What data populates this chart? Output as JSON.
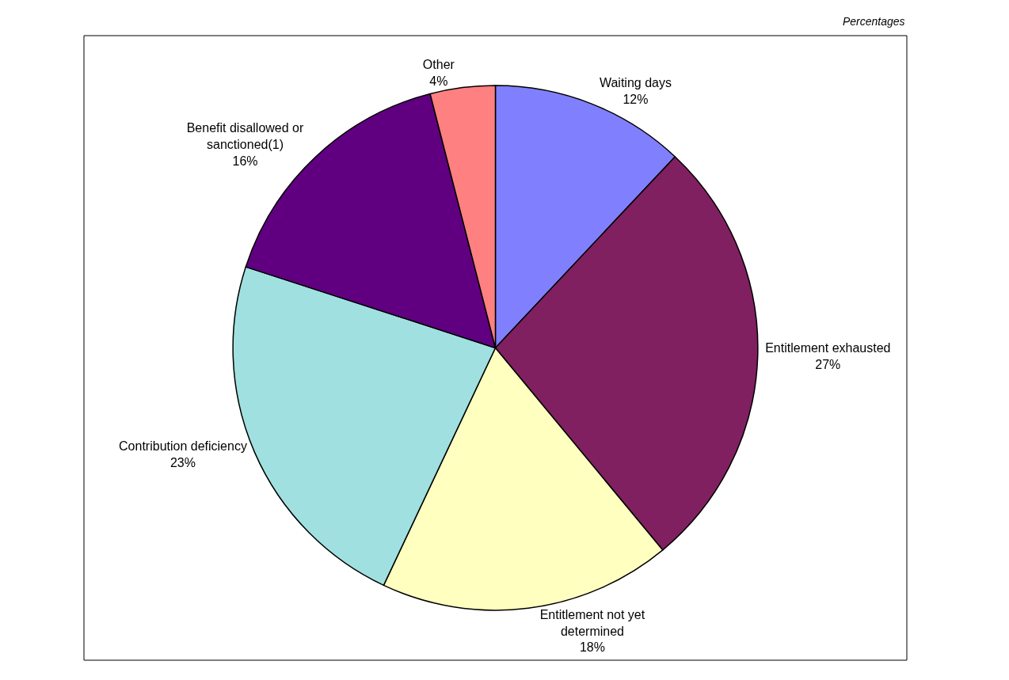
{
  "chart_data": {
    "type": "pie",
    "categories": [
      "Waiting days",
      "Entitlement exhausted",
      "Entitlement not yet\ndetermined",
      "Contribution deficiency",
      "Benefit disallowed or\nsanctioned(1)",
      "Other"
    ],
    "values": [
      12,
      27,
      18,
      23,
      16,
      4
    ],
    "value_labels": [
      "12%",
      "27%",
      "18%",
      "23%",
      "16%",
      "4%"
    ],
    "colors": [
      "#8080ff",
      "#802060",
      "#ffffc0",
      "#a0e0e0",
      "#600080",
      "#ff8080"
    ],
    "annotations": [
      "Percentages"
    ],
    "legend": false
  }
}
